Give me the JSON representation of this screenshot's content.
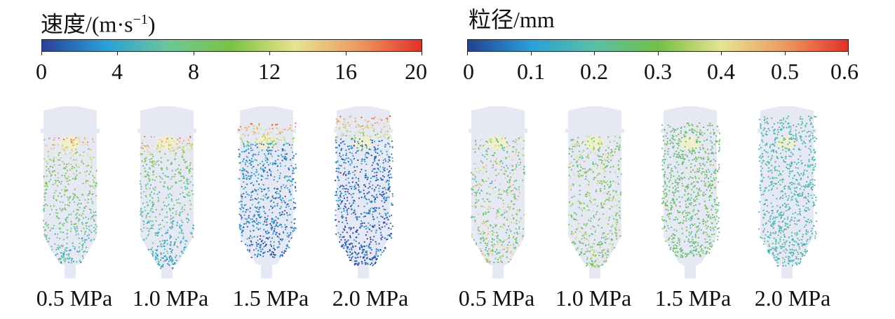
{
  "panels": [
    {
      "title_main": "速度/(m·s",
      "title_sup": "−1",
      "title_close": ")",
      "colormap": [
        "#2b3f99",
        "#2a9fd6",
        "#6cc79a",
        "#7cc242",
        "#e8e48f",
        "#ee9a61",
        "#e03228"
      ],
      "tick_labels": [
        "0",
        "4",
        "8",
        "12",
        "16",
        "20"
      ],
      "captions": [
        "0.5 MPa",
        "1.0 MPa",
        "1.5 MPa",
        "2.0 MPa"
      ]
    },
    {
      "title_main": "粒径/mm",
      "colormap": [
        "#24418f",
        "#2a9fd6",
        "#5bbfa5",
        "#72bf48",
        "#e8e48f",
        "#ee9a61",
        "#e03228"
      ],
      "tick_labels": [
        "0",
        "0.1",
        "0.2",
        "0.3",
        "0.4",
        "0.5",
        "0.6"
      ],
      "captions": [
        "0.5 MPa",
        "1.0 MPa",
        "1.5 MPa",
        "2.0 MPa"
      ]
    }
  ]
}
